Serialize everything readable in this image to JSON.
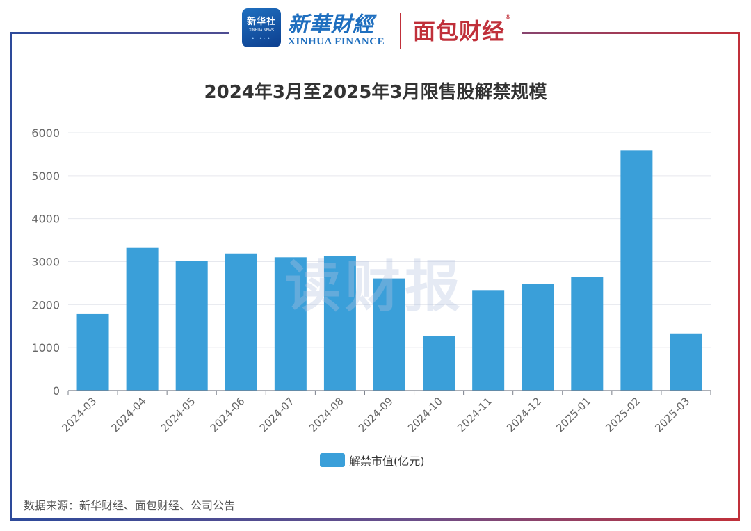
{
  "header": {
    "xinhuashe_logo_text": "新华社",
    "xinhuashe_logo_en": "XINHUA NEWS",
    "xinhua_finance_cn": "新華財經",
    "xinhua_finance_en": "XINHUA FINANCE",
    "mianbao_logo": "面包财经"
  },
  "watermark": "读财报",
  "footer": {
    "source": "数据来源：新华财经、面包财经、公司公告"
  },
  "colors": {
    "bar": "#3a9fd9",
    "frame_left": "#2d4a9a",
    "frame_right": "#c0303a"
  },
  "chart_data": {
    "type": "bar",
    "title": "2024年3月至2025年3月限售股解禁规模",
    "xlabel": "",
    "ylabel": "",
    "categories": [
      "2024-03",
      "2024-04",
      "2024-05",
      "2024-06",
      "2024-07",
      "2024-08",
      "2024-09",
      "2024-10",
      "2024-11",
      "2024-12",
      "2025-01",
      "2025-02",
      "2025-03"
    ],
    "series": [
      {
        "name": "解禁市值(亿元)",
        "values": [
          1780,
          3320,
          3010,
          3190,
          3100,
          3130,
          2610,
          1270,
          2340,
          2480,
          2640,
          5590,
          1330
        ]
      }
    ],
    "ylim": [
      0,
      6000
    ],
    "yticks": [
      "0",
      "1000",
      "2000",
      "3000",
      "4000",
      "5000",
      "6000"
    ],
    "grid": true,
    "legend_position": "bottom"
  }
}
